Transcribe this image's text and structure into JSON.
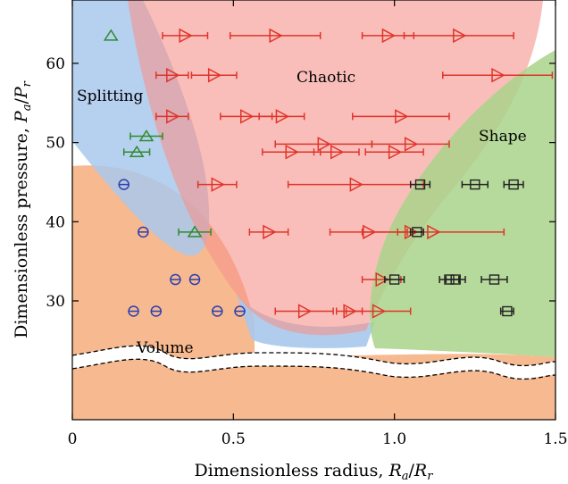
{
  "chart_data": {
    "type": "scatter",
    "xlabel": "Dimensionless radius, ",
    "xlabel_math": "R",
    "xlabel_sub_a": "a",
    "xlabel_slash": "/",
    "xlabel_sub_r": "r",
    "ylabel": "Dimensionless pressure, ",
    "ylabel_math": "P",
    "ylabel_sub_a": "a",
    "ylabel_slash": "/",
    "ylabel_sub_r": "r",
    "xlim": [
      0,
      1.5
    ],
    "ylim": [
      15,
      68
    ],
    "xticks": [
      0,
      0.5,
      1.0,
      1.5
    ],
    "xtick_labels": [
      "0",
      "0.5",
      "1.0",
      "1.5"
    ],
    "yticks": [
      30,
      40,
      50,
      60
    ],
    "ytick_labels": [
      "30",
      "40",
      "50",
      "60"
    ],
    "axis_break": {
      "y_center": 21.5,
      "note": "broken y-axis below ~24"
    },
    "grid": false,
    "region_labels": [
      "Splitting",
      "Chaotic",
      "Shape",
      "Volume"
    ],
    "regions": [
      {
        "name": "Volume",
        "color": "#f7b98f"
      },
      {
        "name": "Splitting",
        "color": "#a9c8ec"
      },
      {
        "name": "Chaotic",
        "color": "#f5928a"
      },
      {
        "name": "Shape",
        "color": "#a9d48a"
      }
    ],
    "series": [
      {
        "marker": "circle-minus",
        "color": "#2b3fb0",
        "points": [
          {
            "x": 0.16,
            "y": 44.7
          },
          {
            "x": 0.22,
            "y": 38.7
          },
          {
            "x": 0.32,
            "y": 32.7
          },
          {
            "x": 0.38,
            "y": 32.7
          },
          {
            "x": 0.19,
            "y": 28.7
          },
          {
            "x": 0.26,
            "y": 28.7
          },
          {
            "x": 0.45,
            "y": 28.7
          },
          {
            "x": 0.52,
            "y": 28.7
          }
        ]
      },
      {
        "marker": "triangle-up",
        "color": "#2e8b2e",
        "points": [
          {
            "x": 0.12,
            "y": 63.5,
            "err": 0.0
          },
          {
            "x": 0.23,
            "y": 50.8,
            "err": 0.05
          },
          {
            "x": 0.2,
            "y": 48.8,
            "err": 0.04
          },
          {
            "x": 0.38,
            "y": 38.7,
            "err": 0.05
          }
        ]
      },
      {
        "marker": "triangle-right",
        "color": "#e0342a",
        "points": [
          {
            "x": 0.35,
            "y": 63.5,
            "err": 0.07
          },
          {
            "x": 0.63,
            "y": 63.5,
            "err": 0.14
          },
          {
            "x": 0.98,
            "y": 63.5,
            "err": 0.08
          },
          {
            "x": 1.2,
            "y": 63.5,
            "err": 0.17
          },
          {
            "x": 0.31,
            "y": 58.5,
            "err": 0.05
          },
          {
            "x": 0.44,
            "y": 58.5,
            "err": 0.07
          },
          {
            "x": 1.32,
            "y": 58.5,
            "err": 0.17
          },
          {
            "x": 0.31,
            "y": 53.3,
            "err": 0.05
          },
          {
            "x": 0.54,
            "y": 53.3,
            "err": 0.08
          },
          {
            "x": 0.65,
            "y": 53.3,
            "err": 0.07
          },
          {
            "x": 1.02,
            "y": 53.3,
            "err": 0.15
          },
          {
            "x": 0.78,
            "y": 49.8,
            "err": 0.15
          },
          {
            "x": 1.05,
            "y": 49.8,
            "err": 0.12
          },
          {
            "x": 0.68,
            "y": 48.8,
            "err": 0.09
          },
          {
            "x": 0.82,
            "y": 48.8,
            "err": 0.07
          },
          {
            "x": 1.0,
            "y": 48.8,
            "err": 0.09
          },
          {
            "x": 0.45,
            "y": 44.7,
            "err": 0.06
          },
          {
            "x": 0.88,
            "y": 44.7,
            "err": 0.21
          },
          {
            "x": 0.61,
            "y": 38.7,
            "err": 0.06
          },
          {
            "x": 0.92,
            "y": 38.7,
            "err": 0.12
          },
          {
            "x": 1.05,
            "y": 38.7,
            "err": 0.04
          },
          {
            "x": 1.12,
            "y": 38.7,
            "err": 0.22
          },
          {
            "x": 0.96,
            "y": 32.7,
            "err": 0.06
          },
          {
            "x": 0.72,
            "y": 28.7,
            "err": 0.09
          },
          {
            "x": 0.86,
            "y": 28.7,
            "err": 0.04
          },
          {
            "x": 0.95,
            "y": 28.7,
            "err": 0.1
          }
        ]
      },
      {
        "marker": "square",
        "color": "#222222",
        "points": [
          {
            "x": 1.08,
            "y": 44.7,
            "err": 0.03
          },
          {
            "x": 1.25,
            "y": 44.7,
            "err": 0.04
          },
          {
            "x": 1.37,
            "y": 44.7,
            "err": 0.03
          },
          {
            "x": 1.07,
            "y": 38.7,
            "err": 0.02
          },
          {
            "x": 1.0,
            "y": 32.7,
            "err": 0.03
          },
          {
            "x": 1.17,
            "y": 32.7,
            "err": 0.03
          },
          {
            "x": 1.19,
            "y": 32.7,
            "err": 0.03
          },
          {
            "x": 1.31,
            "y": 32.7,
            "err": 0.04
          },
          {
            "x": 1.35,
            "y": 28.7,
            "err": 0.02
          }
        ]
      }
    ]
  }
}
